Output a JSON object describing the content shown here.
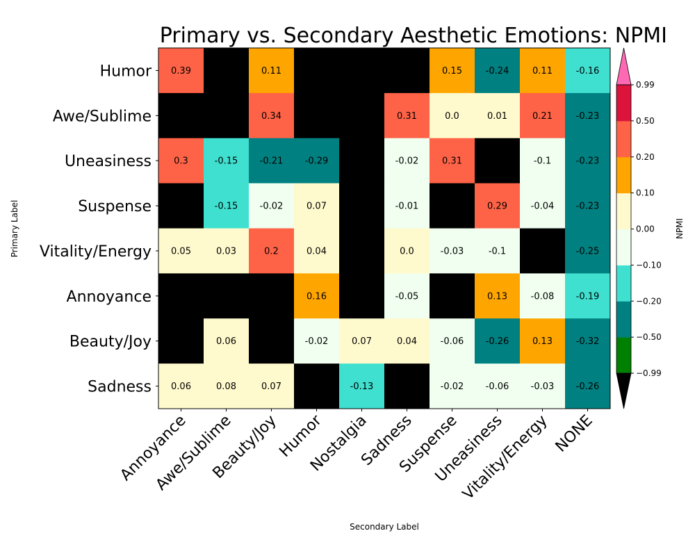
{
  "chart_data": {
    "type": "heatmap",
    "title": "Primary vs. Secondary Aesthetic Emotions: NPMI",
    "xlabel": "Secondary Label",
    "ylabel": "Primary Label",
    "x_categories": [
      "Annoyance",
      "Awe/Sublime",
      "Beauty/Joy",
      "Humor",
      "Nostalgia",
      "Sadness",
      "Suspense",
      "Uneasiness",
      "Vitality/Energy",
      "NONE"
    ],
    "y_categories": [
      "Humor",
      "Awe/Sublime",
      "Uneasiness",
      "Suspense",
      "Vitality/Energy",
      "Annoyance",
      "Beauty/Joy",
      "Sadness"
    ],
    "values": [
      [
        0.39,
        null,
        0.11,
        null,
        null,
        null,
        0.15,
        -0.24,
        0.11,
        -0.16
      ],
      [
        null,
        null,
        0.34,
        null,
        null,
        0.31,
        0.0,
        0.01,
        0.21,
        -0.23
      ],
      [
        0.3,
        -0.15,
        -0.21,
        -0.29,
        null,
        -0.02,
        0.31,
        null,
        -0.1,
        -0.23
      ],
      [
        null,
        -0.15,
        -0.02,
        0.07,
        null,
        -0.01,
        null,
        0.29,
        -0.04,
        -0.23
      ],
      [
        0.05,
        0.03,
        0.2,
        0.04,
        null,
        0.0,
        -0.03,
        -0.1,
        null,
        -0.25
      ],
      [
        null,
        null,
        null,
        0.16,
        null,
        -0.05,
        null,
        0.13,
        -0.08,
        -0.19
      ],
      [
        null,
        0.06,
        null,
        -0.02,
        0.07,
        0.04,
        -0.06,
        -0.26,
        0.13,
        -0.32
      ],
      [
        0.06,
        0.08,
        0.07,
        null,
        -0.13,
        null,
        -0.02,
        -0.06,
        -0.03,
        -0.26
      ]
    ],
    "missing_color": "#000000",
    "colorbar": {
      "label": "NPMI",
      "boundaries": [
        -0.99,
        -0.5,
        -0.2,
        -0.1,
        0.0,
        0.1,
        0.2,
        0.5,
        0.99
      ],
      "tick_labels": [
        "−0.99",
        "−0.50",
        "−0.20",
        "−0.10",
        "0.00",
        "0.10",
        "0.20",
        "0.50",
        "0.99"
      ],
      "colors": [
        "#008000",
        "#008080",
        "#40e0d0",
        "#f0fff0",
        "#fffacd",
        "#ffa500",
        "#ff6347",
        "#dc143c"
      ],
      "under_color": "#000000",
      "over_color": "#ff69b4"
    }
  }
}
